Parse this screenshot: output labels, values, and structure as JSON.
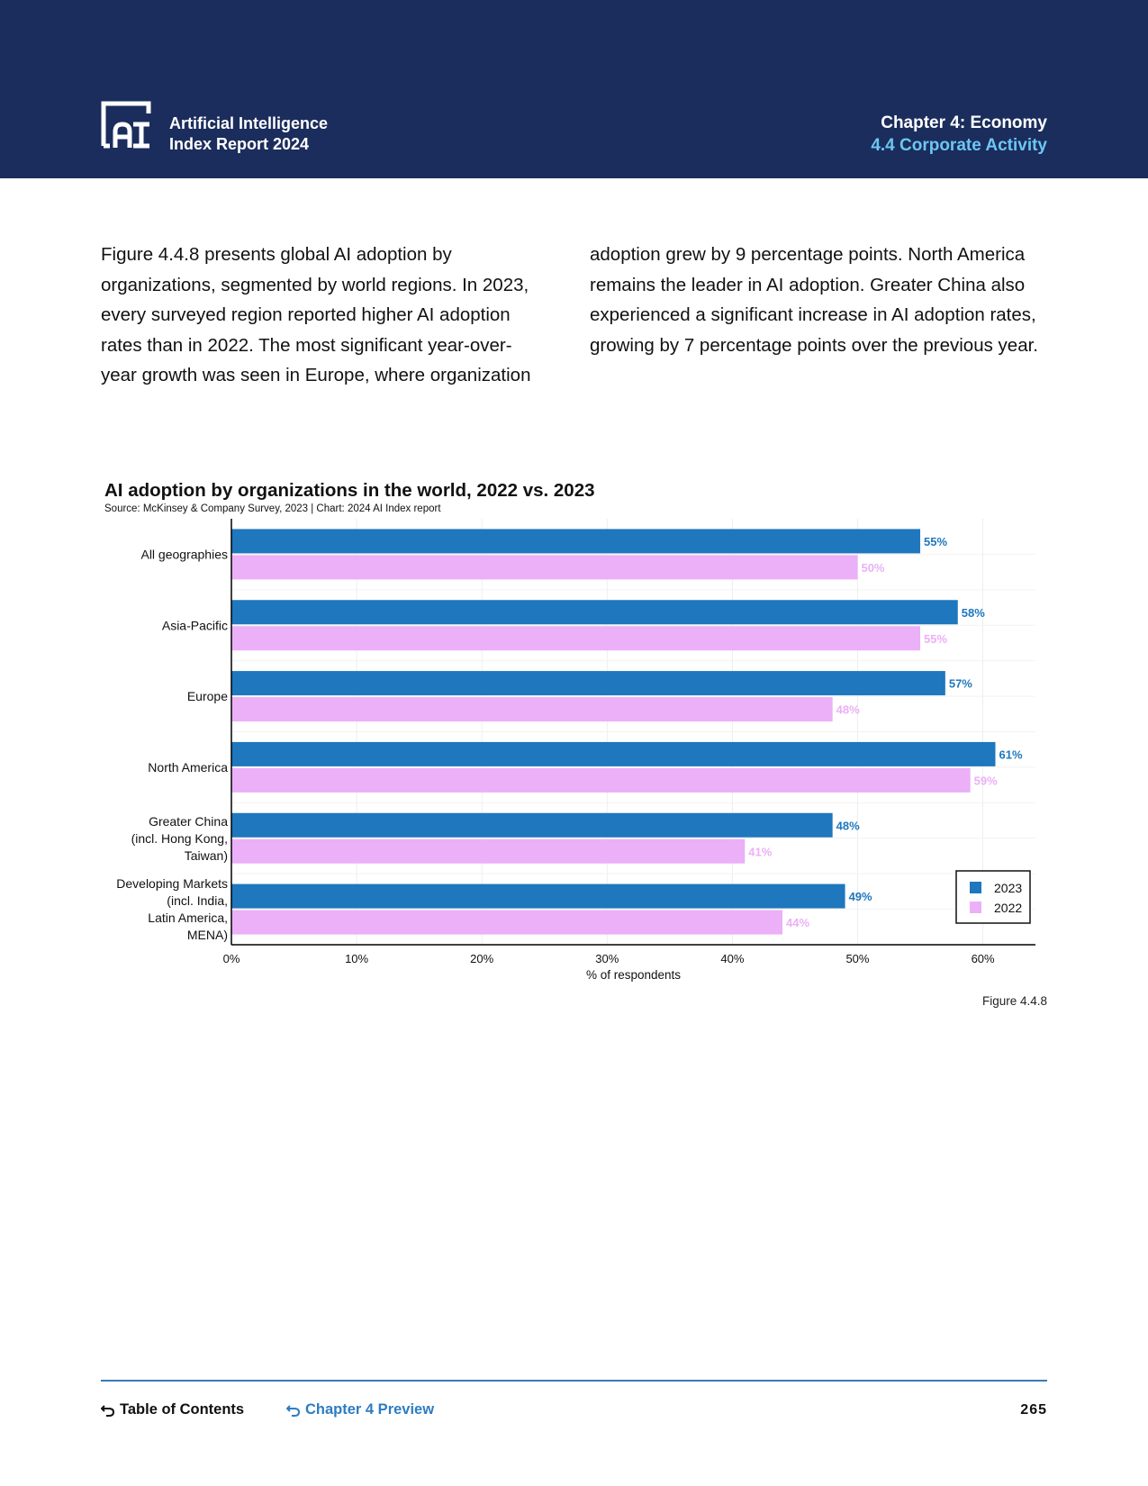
{
  "header": {
    "logo_icon": "ai-index-logo-icon",
    "brand_line1": "Artificial Intelligence",
    "brand_line2": "Index Report 2024",
    "chapter": "Chapter 4: Economy",
    "section": "4.4 Corporate Activity",
    "colors": {
      "background": "#1b2d5c",
      "section": "#6cc7f2"
    }
  },
  "body": {
    "left_paragraph": "Figure 4.4.8 presents global AI adoption by organizations, segmented by world regions. In 2023, every surveyed region reported higher AI adoption rates than in 2022. The most significant year-over-year growth was seen in Europe, where organization",
    "right_paragraph": "adoption grew by 9 percentage points. North America remains the leader in AI adoption. Greater China also experienced a significant increase in AI adoption rates, growing by 7 percentage points over the previous year."
  },
  "chart_data": {
    "type": "bar",
    "orientation": "horizontal",
    "title": "AI adoption by organizations in the world, 2022 vs. 2023",
    "source": "Source: McKinsey & Company Survey, 2023 | Chart: 2024 AI Index report",
    "categories": [
      [
        "All geographies"
      ],
      [
        "Asia-Pacific"
      ],
      [
        "Europe"
      ],
      [
        "North America"
      ],
      [
        "Greater China",
        "(incl. Hong Kong,",
        "Taiwan)"
      ],
      [
        "Developing Markets",
        "(incl. India,",
        "Latin America,",
        "MENA)"
      ]
    ],
    "series": [
      {
        "name": "2023",
        "color": "#1f77bd",
        "values": [
          55,
          58,
          57,
          61,
          48,
          49
        ]
      },
      {
        "name": "2022",
        "color": "#ebb0f7",
        "values": [
          50,
          55,
          48,
          59,
          41,
          44
        ]
      }
    ],
    "value_suffix": "%",
    "xlabel": "% of respondents",
    "xlim": [
      0,
      64.2
    ],
    "xticks": [
      0,
      10,
      20,
      30,
      40,
      50,
      60
    ],
    "xtick_suffix": "%",
    "grid": true,
    "legend_position": "bottom-right"
  },
  "figure_label": "Figure 4.4.8",
  "footer": {
    "toc_label": "Table of Contents",
    "preview_label": "Chapter 4 Preview",
    "page_number": "265",
    "toc_icon": "return-arrow-icon",
    "preview_icon": "return-arrow-icon"
  }
}
